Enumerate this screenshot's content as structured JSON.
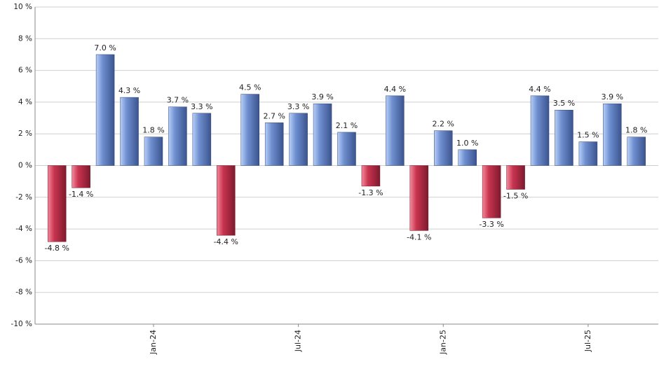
{
  "chart_data": {
    "type": "bar",
    "categories": [
      null,
      null,
      null,
      null,
      "Jan-24",
      null,
      null,
      null,
      null,
      null,
      "Jul-24",
      null,
      null,
      null,
      null,
      null,
      "Jan-25",
      null,
      null,
      null,
      null,
      null,
      "Jul-25",
      null,
      null
    ],
    "values": [
      -4.8,
      -1.4,
      7.0,
      4.3,
      1.8,
      3.7,
      3.3,
      -4.4,
      4.5,
      2.7,
      3.3,
      3.9,
      2.1,
      -1.3,
      4.4,
      -4.1,
      2.2,
      1.0,
      -3.3,
      -1.5,
      4.4,
      3.5,
      1.5,
      3.9,
      1.8
    ],
    "value_labels": [
      "-4.8 %",
      "-1.4 %",
      "7.0 %",
      "4.3 %",
      "1.8 %",
      "3.7 %",
      "3.3 %",
      "-4.4 %",
      "4.5 %",
      "2.7 %",
      "3.3 %",
      "3.9 %",
      "2.1 %",
      "-1.3 %",
      "4.4 %",
      "-4.1 %",
      "2.2 %",
      "1.0 %",
      "-3.3 %",
      "-1.5 %",
      "4.4 %",
      "3.5 %",
      "1.5 %",
      "3.9 %",
      "1.8 %"
    ],
    "positive_color": "#6f8fd0",
    "negative_color": "#c8344f",
    "ylim": [
      -10,
      10
    ],
    "yticks": [
      {
        "value": -10,
        "label": "-10 %"
      },
      {
        "value": -8,
        "label": "-8 %"
      },
      {
        "value": -6,
        "label": "-6 %"
      },
      {
        "value": -4,
        "label": "-4 %"
      },
      {
        "value": -2,
        "label": "-2 %"
      },
      {
        "value": 0,
        "label": "0 %"
      },
      {
        "value": 2,
        "label": "2 %"
      },
      {
        "value": 4,
        "label": "4 %"
      },
      {
        "value": 6,
        "label": "6 %"
      },
      {
        "value": 8,
        "label": "8 %"
      },
      {
        "value": 10,
        "label": "10 %"
      }
    ],
    "grid": true
  }
}
